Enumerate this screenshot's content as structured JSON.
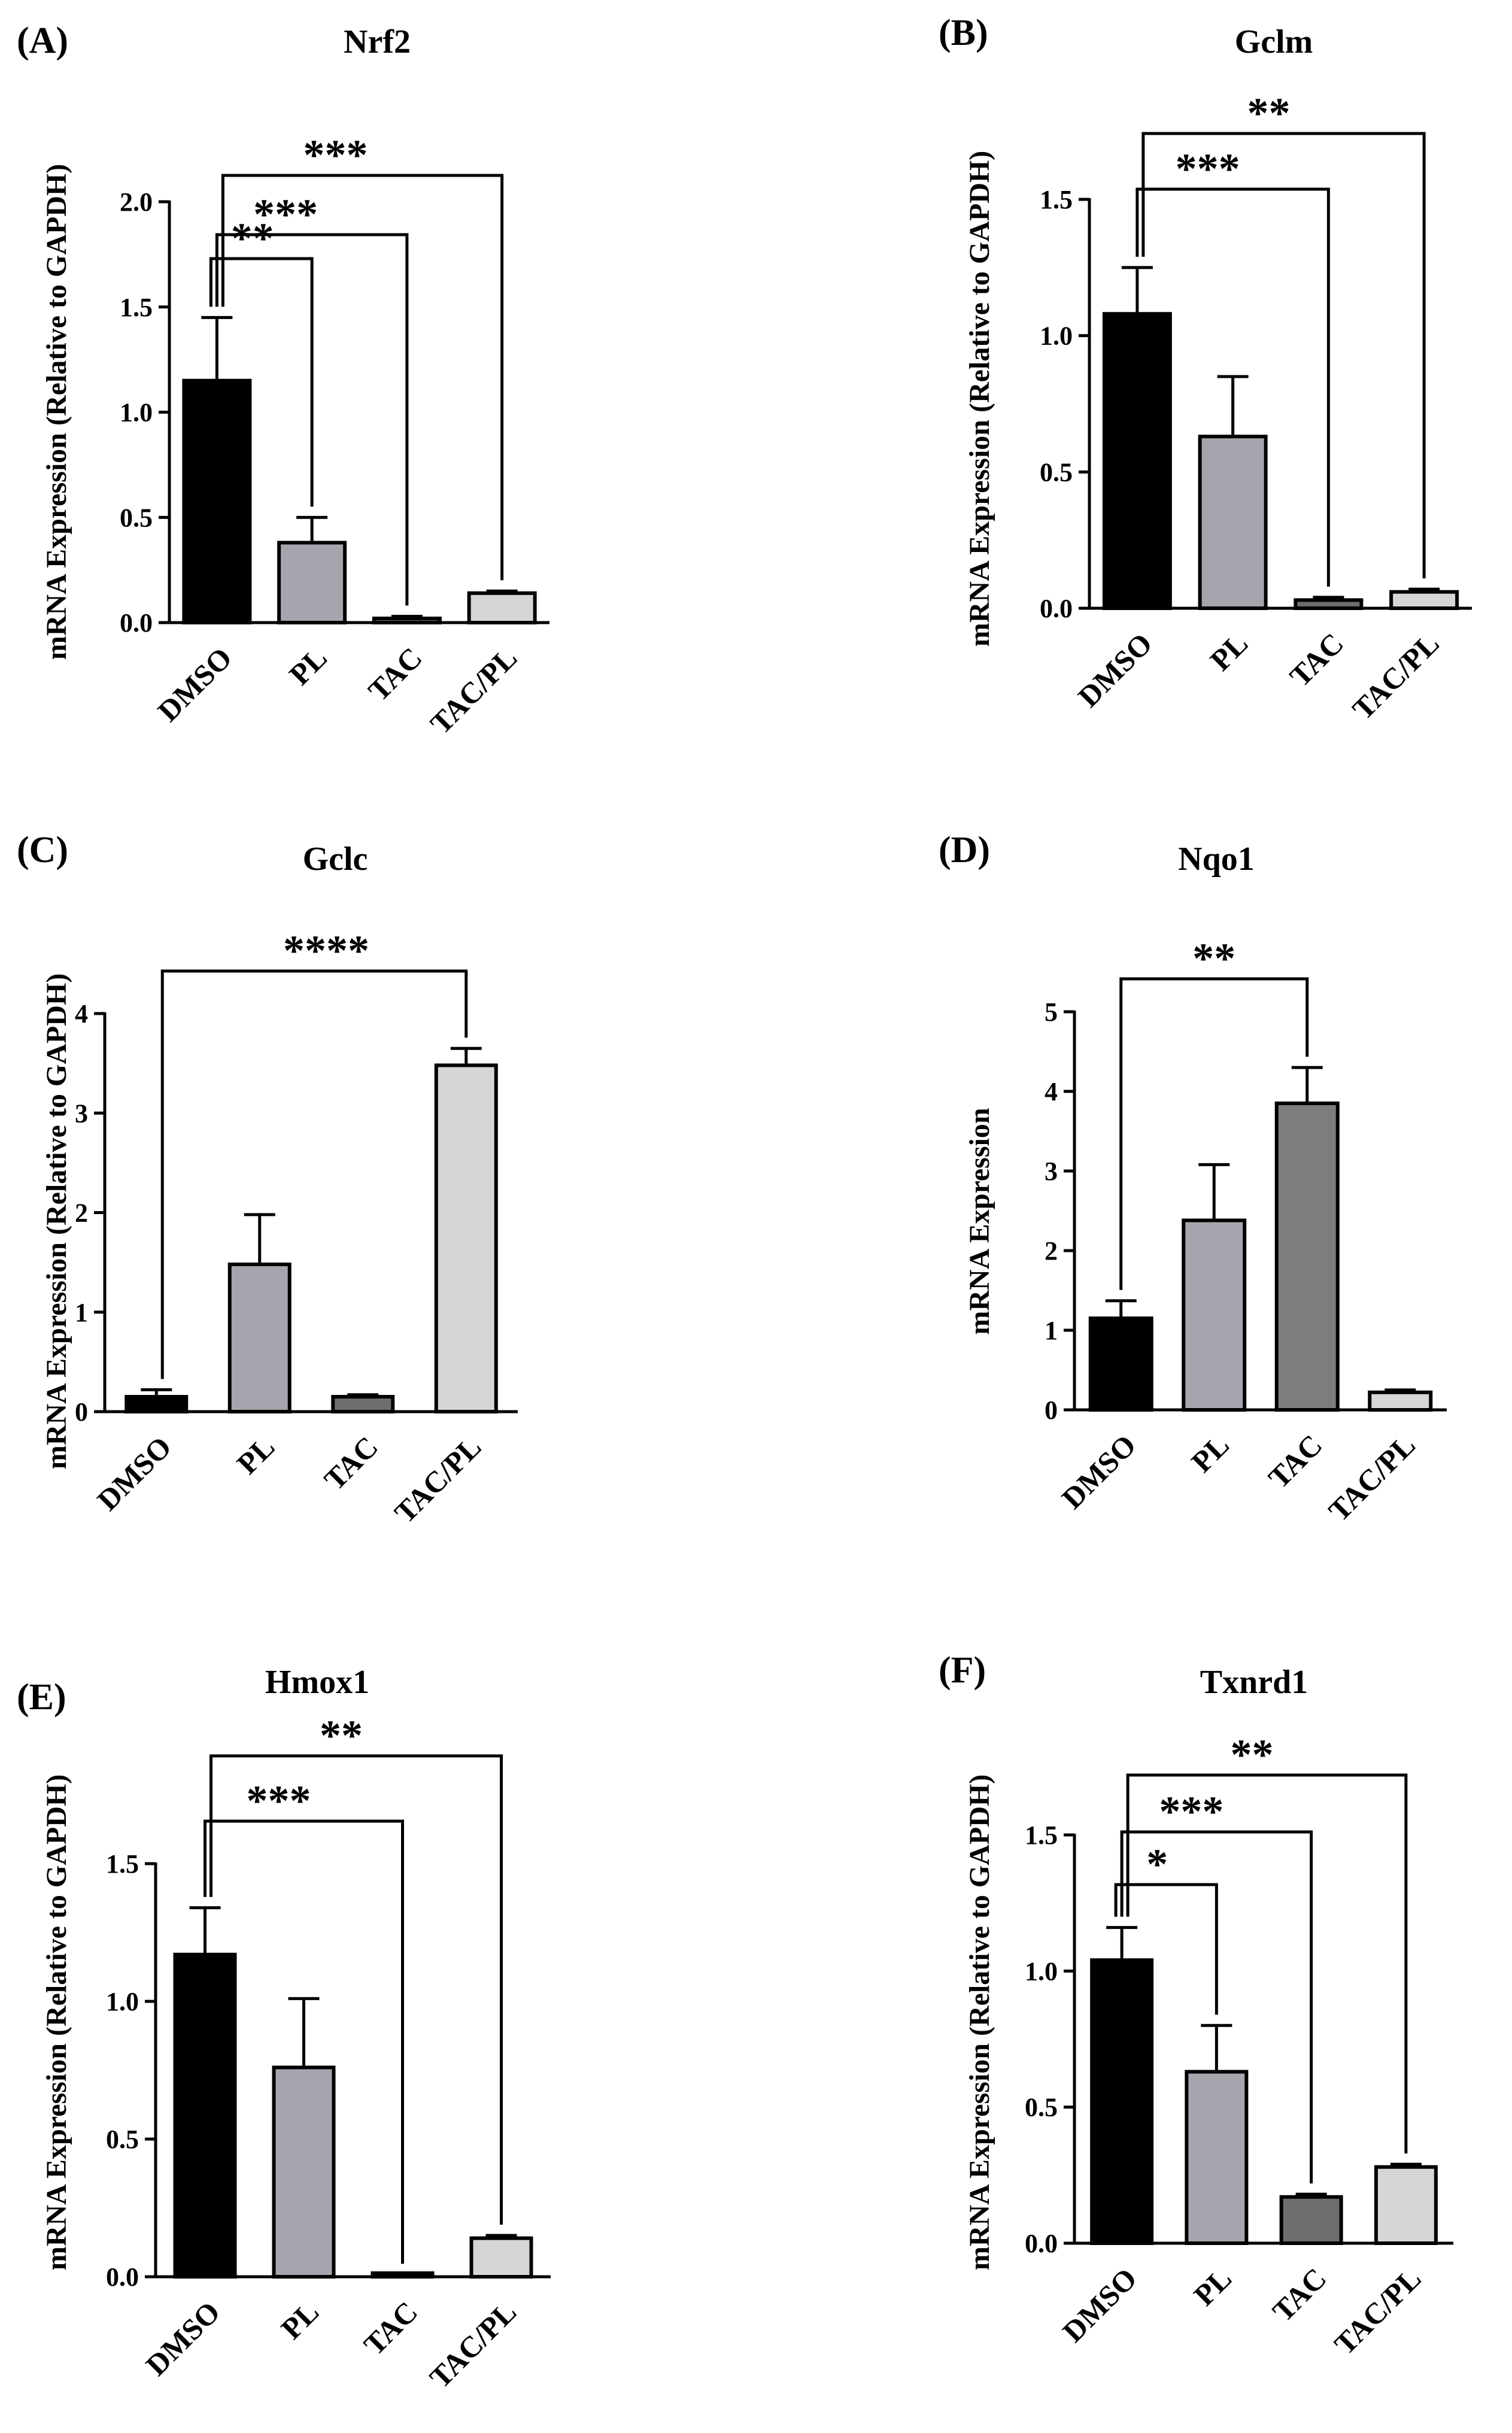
{
  "chart_data": [
    {
      "type": "bar",
      "panel": "(A)",
      "title": "Nrf2",
      "ylabel": "mRNA Expression (Relative to GAPDH)",
      "categories": [
        "DMSO",
        "PL",
        "TAC",
        "TAC/PL"
      ],
      "values": [
        1.15,
        0.38,
        0.02,
        0.14
      ],
      "errors": [
        0.3,
        0.12,
        0.01,
        0.01
      ],
      "colors": [
        "#000000",
        "#a5a5ad",
        "#6e6e6e",
        "#d6d6d6"
      ],
      "ylim": [
        0,
        2.0
      ],
      "ticks": [
        0,
        0.5,
        1.0,
        1.5,
        2.0
      ],
      "tick_labels": [
        "0.0",
        "0.5",
        "1.0",
        "1.5",
        "2.0"
      ],
      "sig": [
        {
          "from": 0,
          "to": 1,
          "label": "**"
        },
        {
          "from": 0,
          "to": 2,
          "label": "***"
        },
        {
          "from": 0,
          "to": 3,
          "label": "***"
        }
      ]
    },
    {
      "type": "bar",
      "panel": "(B)",
      "title": "Gclm",
      "ylabel": "mRNA Expression (Relative to GAPDH)",
      "categories": [
        "DMSO",
        "PL",
        "TAC",
        "TAC/PL"
      ],
      "values": [
        1.08,
        0.63,
        0.03,
        0.06
      ],
      "errors": [
        0.17,
        0.22,
        0.01,
        0.01
      ],
      "colors": [
        "#000000",
        "#a5a5ad",
        "#6e6e6e",
        "#d6d6d6"
      ],
      "ylim": [
        0,
        1.5
      ],
      "ticks": [
        0,
        0.5,
        1.0,
        1.5
      ],
      "tick_labels": [
        "0.0",
        "0.5",
        "1.0",
        "1.5"
      ],
      "sig": [
        {
          "from": 0,
          "to": 2,
          "label": "***"
        },
        {
          "from": 0,
          "to": 3,
          "label": "**"
        }
      ]
    },
    {
      "type": "bar",
      "panel": "(C)",
      "title": "Gclc",
      "ylabel": "mRNA Expression (Relative to GAPDH)",
      "categories": [
        "DMSO",
        "PL",
        "TAC",
        "TAC/PL"
      ],
      "values": [
        0.15,
        1.48,
        0.15,
        3.48
      ],
      "errors": [
        0.07,
        0.5,
        0.02,
        0.17
      ],
      "colors": [
        "#000000",
        "#a5a5ad",
        "#6e6e6e",
        "#d6d6d6"
      ],
      "ylim": [
        0,
        4
      ],
      "ticks": [
        0,
        1,
        2,
        3,
        4
      ],
      "tick_labels": [
        "0",
        "1",
        "2",
        "3",
        "4"
      ],
      "sig": [
        {
          "from": 0,
          "to": 3,
          "label": "****"
        }
      ]
    },
    {
      "type": "bar",
      "panel": "(D)",
      "title": "Nqo1",
      "ylabel": "mRNA Expression",
      "categories": [
        "DMSO",
        "PL",
        "TAC",
        "TAC/PL"
      ],
      "values": [
        1.15,
        2.38,
        3.85,
        0.22
      ],
      "errors": [
        0.22,
        0.7,
        0.45,
        0.03
      ],
      "colors": [
        "#000000",
        "#a5a5ad",
        "#7d7d7d",
        "#d6d6d6"
      ],
      "ylim": [
        0,
        5
      ],
      "ticks": [
        0,
        1,
        2,
        3,
        4,
        5
      ],
      "tick_labels": [
        "0",
        "1",
        "2",
        "3",
        "4",
        "5"
      ],
      "sig": [
        {
          "from": 0,
          "to": 2,
          "label": "**"
        }
      ]
    },
    {
      "type": "bar",
      "panel": "(E)",
      "title": "Hmox1",
      "ylabel": "mRNA Expression (Relative to GAPDH)",
      "categories": [
        "DMSO",
        "PL",
        "TAC",
        "TAC/PL"
      ],
      "values": [
        1.17,
        0.76,
        0.005,
        0.14
      ],
      "errors": [
        0.17,
        0.25,
        0.003,
        0.01
      ],
      "colors": [
        "#000000",
        "#a5a5ad",
        "#6e6e6e",
        "#d6d6d6"
      ],
      "ylim": [
        0,
        1.5
      ],
      "ticks": [
        0,
        0.5,
        1.0,
        1.5
      ],
      "tick_labels": [
        "0.0",
        "0.5",
        "1.0",
        "1.5"
      ],
      "sig": [
        {
          "from": 0,
          "to": 2,
          "label": "***"
        },
        {
          "from": 0,
          "to": 3,
          "label": "**"
        }
      ]
    },
    {
      "type": "bar",
      "panel": "(F)",
      "title": "Txnrd1",
      "ylabel": "mRNA Expression (Relative to GAPDH)",
      "categories": [
        "DMSO",
        "PL",
        "TAC",
        "TAC/PL"
      ],
      "values": [
        1.04,
        0.63,
        0.17,
        0.28
      ],
      "errors": [
        0.12,
        0.17,
        0.01,
        0.01
      ],
      "colors": [
        "#000000",
        "#a5a5ad",
        "#6e6e6e",
        "#d6d6d6"
      ],
      "ylim": [
        0,
        1.5
      ],
      "ticks": [
        0,
        0.5,
        1.0,
        1.5
      ],
      "tick_labels": [
        "0.0",
        "0.5",
        "1.0",
        "1.5"
      ],
      "sig": [
        {
          "from": 0,
          "to": 1,
          "label": "*"
        },
        {
          "from": 0,
          "to": 2,
          "label": "***"
        },
        {
          "from": 0,
          "to": 3,
          "label": "**"
        }
      ]
    }
  ]
}
